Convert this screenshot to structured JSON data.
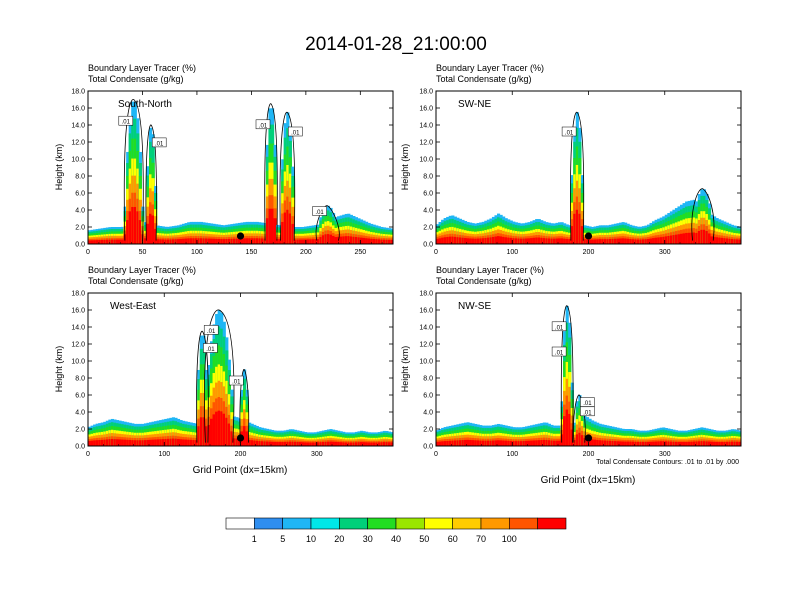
{
  "title": "2014-01-28_21:00:00",
  "colors": {
    "levels": [
      "#ffffff",
      "#2f8ef0",
      "#1fb6f5",
      "#00e8e8",
      "#00d07a",
      "#22dd22",
      "#9ae600",
      "#ffff00",
      "#ffcc00",
      "#ff9900",
      "#ff5500",
      "#ff0000"
    ],
    "contour": "#000000",
    "marker": "#000000"
  },
  "colorbar": {
    "labels": [
      "1",
      "5",
      "10",
      "20",
      "30",
      "40",
      "50",
      "60",
      "70",
      "100"
    ]
  },
  "footer_note": "Total Condensate Contours: .01 to .01 by .000",
  "chart_data": [
    {
      "type": "heatmap",
      "panel_label": "South-North",
      "subtitle_1": "Boundary Layer Tracer    (%)",
      "subtitle_2": "Total Condensate    (g/kg)",
      "ylabel": "Height (km)",
      "xlabel": "",
      "xlim": [
        0,
        280
      ],
      "ylim": [
        0,
        18
      ],
      "xticks": [
        "0",
        "50",
        "100",
        "150",
        "200",
        "250"
      ],
      "yticks": [
        "0.0",
        "2.0",
        "4.0",
        "6.0",
        "8.0",
        "10.0",
        "12.0",
        "14.0",
        "16.0",
        "18.0"
      ],
      "contour_labels": [
        ".01",
        ".01",
        ".01",
        ".01",
        ".01"
      ],
      "marker_x": 140,
      "boundary_layer_top_km": [
        1.6,
        1.8,
        2.0,
        2.0,
        2.4,
        2.6,
        2.2,
        2.0,
        2.2,
        2.6,
        2.6,
        2.4,
        2.2,
        2.4,
        2.6,
        2.6,
        2.4,
        2.2,
        2.0,
        2.0,
        2.2,
        2.4,
        3.2,
        3.6,
        3.0,
        2.4,
        2.0,
        1.8
      ],
      "plumes": [
        {
          "x": 42,
          "width": 18,
          "top_km": 17.0
        },
        {
          "x": 58,
          "width": 10,
          "top_km": 14.0
        },
        {
          "x": 168,
          "width": 12,
          "top_km": 16.5
        },
        {
          "x": 183,
          "width": 14,
          "top_km": 15.5
        },
        {
          "x": 220,
          "width": 22,
          "top_km": 4.5
        }
      ]
    },
    {
      "type": "heatmap",
      "panel_label": "SW-NE",
      "subtitle_1": "Boundary Layer Tracer    (%)",
      "subtitle_2": "Total Condensate    (g/kg)",
      "ylabel": "Height (km)",
      "xlabel": "",
      "xlim": [
        0,
        400
      ],
      "ylim": [
        0,
        18
      ],
      "xticks": [
        "0",
        "100",
        "200",
        "300"
      ],
      "yticks": [
        "0.0",
        "2.0",
        "4.0",
        "6.0",
        "8.0",
        "10.0",
        "12.0",
        "14.0",
        "16.0",
        "18.0"
      ],
      "contour_labels": [
        ".01"
      ],
      "marker_x": 200,
      "boundary_layer_top_km": [
        2.2,
        3.0,
        3.4,
        3.0,
        2.6,
        2.4,
        2.6,
        3.0,
        3.6,
        3.0,
        2.6,
        2.4,
        2.6,
        3.0,
        2.6,
        2.4,
        2.6,
        2.2,
        2.4,
        2.2,
        2.0,
        2.2,
        2.2,
        2.4,
        2.6,
        2.2,
        2.0,
        2.2,
        2.8,
        3.2,
        3.8,
        4.4,
        5.0,
        5.2,
        4.6,
        3.6,
        3.0,
        2.6,
        2.2,
        2.0
      ],
      "plumes": [
        {
          "x": 185,
          "width": 18,
          "top_km": 15.5
        },
        {
          "x": 350,
          "width": 30,
          "top_km": 6.5
        }
      ]
    },
    {
      "type": "heatmap",
      "panel_label": "West-East",
      "subtitle_1": "Boundary Layer Tracer    (%)",
      "subtitle_2": "Total Condensate    (g/kg)",
      "ylabel": "Height (km)",
      "xlabel": "Grid Point (dx=15km)",
      "xlim": [
        0,
        400
      ],
      "ylim": [
        0,
        18
      ],
      "xticks": [
        "0",
        "100",
        "200",
        "300"
      ],
      "yticks": [
        "0.0",
        "2.0",
        "4.0",
        "6.0",
        "8.0",
        "10.0",
        "12.0",
        "14.0",
        "16.0",
        "18.0"
      ],
      "contour_labels": [
        ".01",
        ".01",
        ".01"
      ],
      "marker_x": 200,
      "boundary_layer_top_km": [
        2.2,
        2.6,
        2.8,
        3.2,
        3.0,
        2.8,
        2.6,
        2.6,
        2.8,
        3.0,
        3.2,
        3.4,
        3.0,
        2.8,
        2.6,
        2.4,
        2.8,
        3.2,
        3.6,
        3.4,
        3.0,
        2.6,
        2.2,
        2.0,
        1.8,
        1.8,
        2.0,
        1.8,
        1.6,
        1.6,
        1.8,
        2.0,
        1.8,
        1.6,
        1.6,
        1.8,
        1.6,
        1.6,
        1.8,
        1.6
      ],
      "plumes": [
        {
          "x": 172,
          "width": 40,
          "top_km": 16.0
        },
        {
          "x": 150,
          "width": 16,
          "top_km": 13.5
        },
        {
          "x": 205,
          "width": 12,
          "top_km": 9.0
        }
      ]
    },
    {
      "type": "heatmap",
      "panel_label": "NW-SE",
      "subtitle_1": "Boundary Layer Tracer    (%)",
      "subtitle_2": "Total Condensate    (g/kg)",
      "ylabel": "Height (km)",
      "xlabel": "Grid Point (dx=15km)",
      "xlim": [
        0,
        400
      ],
      "ylim": [
        0,
        18
      ],
      "xticks": [
        "0",
        "100",
        "200",
        "300"
      ],
      "yticks": [
        "0.0",
        "2.0",
        "4.0",
        "6.0",
        "8.0",
        "10.0",
        "12.0",
        "14.0",
        "16.0",
        "18.0"
      ],
      "contour_labels": [
        ".01",
        ".01",
        ".01",
        ".01"
      ],
      "marker_x": 200,
      "boundary_layer_top_km": [
        1.8,
        2.2,
        2.4,
        2.6,
        2.8,
        2.6,
        2.4,
        2.4,
        2.6,
        2.4,
        2.2,
        2.2,
        2.4,
        2.6,
        2.8,
        2.4,
        2.4,
        2.6,
        2.8,
        3.6,
        3.0,
        2.6,
        2.4,
        2.2,
        2.0,
        2.0,
        1.8,
        1.8,
        2.0,
        2.2,
        2.0,
        1.8,
        1.8,
        2.0,
        2.2,
        2.0,
        1.8,
        1.8,
        2.0,
        1.8
      ],
      "plumes": [
        {
          "x": 172,
          "width": 16,
          "top_km": 16.5
        },
        {
          "x": 188,
          "width": 16,
          "top_km": 6.0
        }
      ]
    }
  ]
}
